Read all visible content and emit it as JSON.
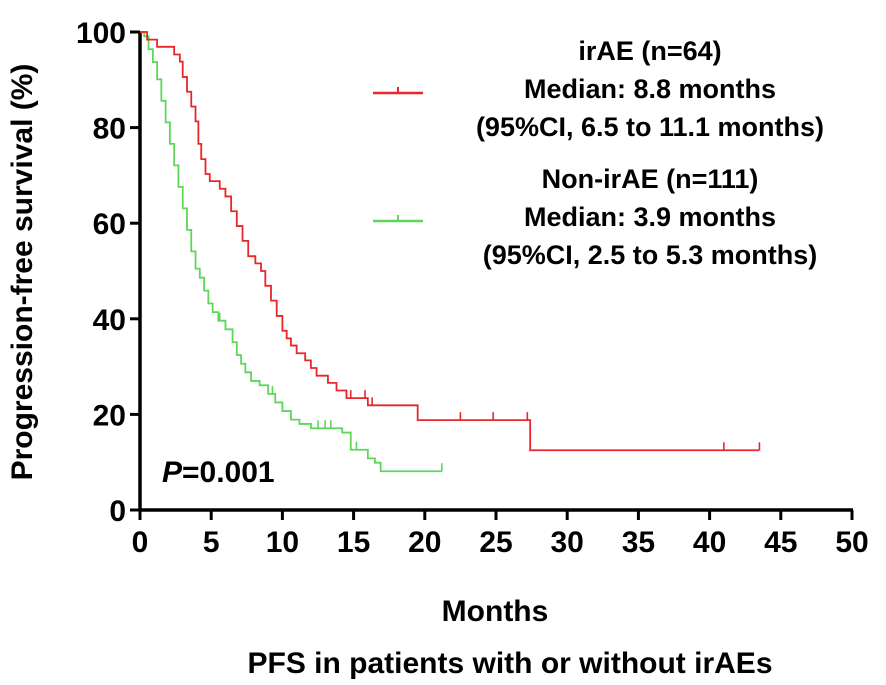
{
  "chart_data": {
    "type": "line",
    "subtype": "kaplan-meier",
    "caption": "PFS in patients with or without irAEs",
    "xlabel": "Months",
    "ylabel": "Progression-free survival (%)",
    "xlim": [
      0,
      50
    ],
    "ylim": [
      0,
      100
    ],
    "xticks": [
      "0",
      "5",
      "10",
      "15",
      "20",
      "25",
      "30",
      "35",
      "40",
      "45",
      "50"
    ],
    "yticks": [
      "0",
      "20",
      "40",
      "60",
      "80",
      "100"
    ],
    "grid": false,
    "legend_position": "top-right",
    "p_value_label": "P",
    "p_value_text": "=0.001",
    "series": [
      {
        "name": "irAE (n=64)",
        "color": "#e8272a",
        "legend_lines": [
          "irAE (n=64)",
          "Median: 8.8 months",
          "(95%CI, 6.5 to 11.1 months)"
        ],
        "steps": [
          [
            0,
            100
          ],
          [
            0.5,
            98.4
          ],
          [
            1.2,
            96.9
          ],
          [
            2.4,
            95.3
          ],
          [
            2.8,
            93.8
          ],
          [
            3.0,
            90.6
          ],
          [
            3.3,
            87.5
          ],
          [
            3.6,
            84.4
          ],
          [
            3.9,
            81.3
          ],
          [
            4.1,
            76.6
          ],
          [
            4.3,
            73.4
          ],
          [
            4.6,
            70.3
          ],
          [
            4.9,
            68.8
          ],
          [
            5.6,
            67.2
          ],
          [
            6.0,
            65.6
          ],
          [
            6.4,
            62.5
          ],
          [
            6.8,
            59.4
          ],
          [
            7.2,
            56.3
          ],
          [
            7.6,
            53.1
          ],
          [
            8.1,
            51.6
          ],
          [
            8.5,
            50.0
          ],
          [
            8.8,
            46.9
          ],
          [
            9.2,
            43.8
          ],
          [
            9.6,
            40.6
          ],
          [
            10.0,
            37.5
          ],
          [
            10.3,
            35.9
          ],
          [
            10.6,
            34.4
          ],
          [
            11.0,
            32.8
          ],
          [
            11.6,
            31.3
          ],
          [
            12.0,
            29.7
          ],
          [
            12.4,
            28.1
          ],
          [
            13.2,
            26.6
          ],
          [
            13.8,
            25.0
          ],
          [
            14.5,
            23.4
          ],
          [
            16.0,
            21.9
          ],
          [
            19.5,
            18.8
          ],
          [
            27.4,
            12.5
          ],
          [
            43.5,
            12.5
          ]
        ],
        "censor": [
          14.8,
          15.8,
          16.3,
          22.5,
          24.8,
          27.2,
          41.0,
          43.5
        ]
      },
      {
        "name": "Non-irAE (n=111)",
        "color": "#5ed65a",
        "legend_lines": [
          "Non-irAE (n=111)",
          "Median: 3.9 months",
          "(95%CI, 2.5 to 5.3 months)"
        ],
        "steps": [
          [
            0,
            100
          ],
          [
            0.3,
            99.1
          ],
          [
            0.6,
            96.4
          ],
          [
            0.9,
            93.7
          ],
          [
            1.2,
            90.1
          ],
          [
            1.5,
            85.6
          ],
          [
            1.8,
            81.1
          ],
          [
            2.1,
            76.6
          ],
          [
            2.4,
            72.1
          ],
          [
            2.7,
            67.6
          ],
          [
            3.0,
            63.1
          ],
          [
            3.3,
            58.6
          ],
          [
            3.6,
            54.1
          ],
          [
            3.9,
            50.5
          ],
          [
            4.2,
            48.6
          ],
          [
            4.5,
            45.9
          ],
          [
            4.8,
            43.2
          ],
          [
            5.1,
            41.4
          ],
          [
            5.5,
            39.6
          ],
          [
            6.0,
            37.8
          ],
          [
            6.5,
            35.1
          ],
          [
            6.8,
            32.4
          ],
          [
            7.1,
            30.6
          ],
          [
            7.4,
            28.8
          ],
          [
            7.8,
            27.0
          ],
          [
            8.4,
            26.1
          ],
          [
            9.0,
            24.3
          ],
          [
            9.5,
            22.5
          ],
          [
            10.0,
            20.7
          ],
          [
            10.6,
            18.9
          ],
          [
            11.2,
            18.0
          ],
          [
            12.0,
            17.1
          ],
          [
            14.2,
            16.2
          ],
          [
            14.8,
            12.6
          ],
          [
            16.0,
            10.8
          ],
          [
            16.5,
            9.9
          ],
          [
            16.9,
            8.1
          ],
          [
            21.2,
            8.1
          ]
        ],
        "censor": [
          5.6,
          9.3,
          12.5,
          13.0,
          13.4,
          15.2,
          21.2
        ]
      }
    ]
  }
}
